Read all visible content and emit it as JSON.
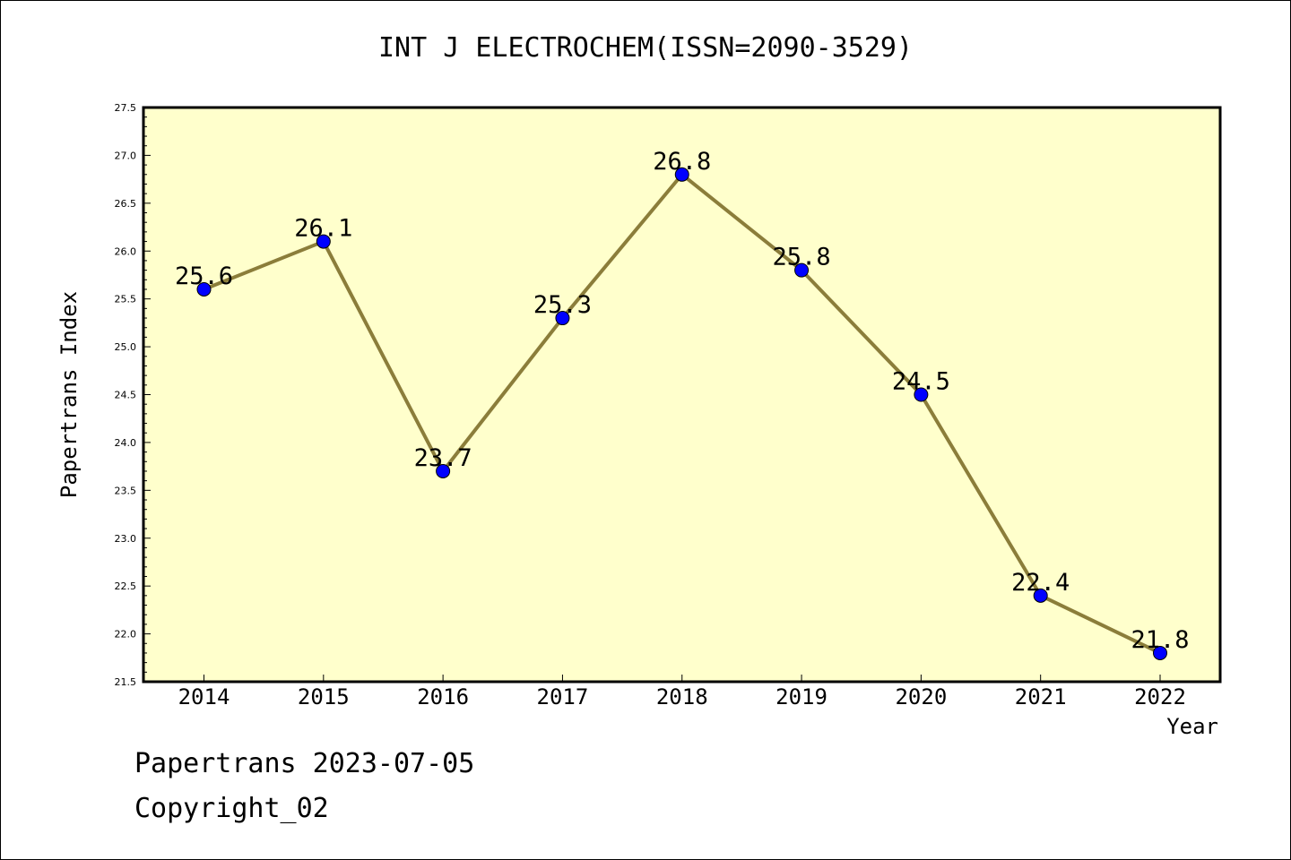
{
  "chart_data": {
    "type": "line",
    "title": "INT J ELECTROCHEM(ISSN=2090-3529)",
    "xlabel": "Year",
    "ylabel": "Papertrans Index",
    "categories": [
      "2014",
      "2015",
      "2016",
      "2017",
      "2018",
      "2019",
      "2020",
      "2021",
      "2022"
    ],
    "series": [
      {
        "values": [
          25.6,
          26.1,
          23.7,
          25.3,
          26.8,
          25.8,
          24.5,
          22.4,
          21.8
        ],
        "data_labels": [
          "25.6",
          "26.1",
          "23.7",
          "25.3",
          "26.8",
          "25.8",
          "24.5",
          "22.4",
          "21.8"
        ]
      }
    ],
    "ylim": [
      21.5,
      27.5
    ],
    "y_ticks": [
      "21.5",
      "22.0",
      "22.5",
      "23.0",
      "23.5",
      "24.0",
      "24.5",
      "25.0",
      "25.5",
      "26.0",
      "26.5",
      "27.0",
      "27.5"
    ],
    "grid": false,
    "legend": "none",
    "colors": {
      "plot_background": "#ffffcc",
      "line": "#8b7d3a",
      "marker": "#0000ff"
    }
  },
  "footer": {
    "line1": "Papertrans 2023-07-05",
    "line2": "Copyright_02"
  }
}
